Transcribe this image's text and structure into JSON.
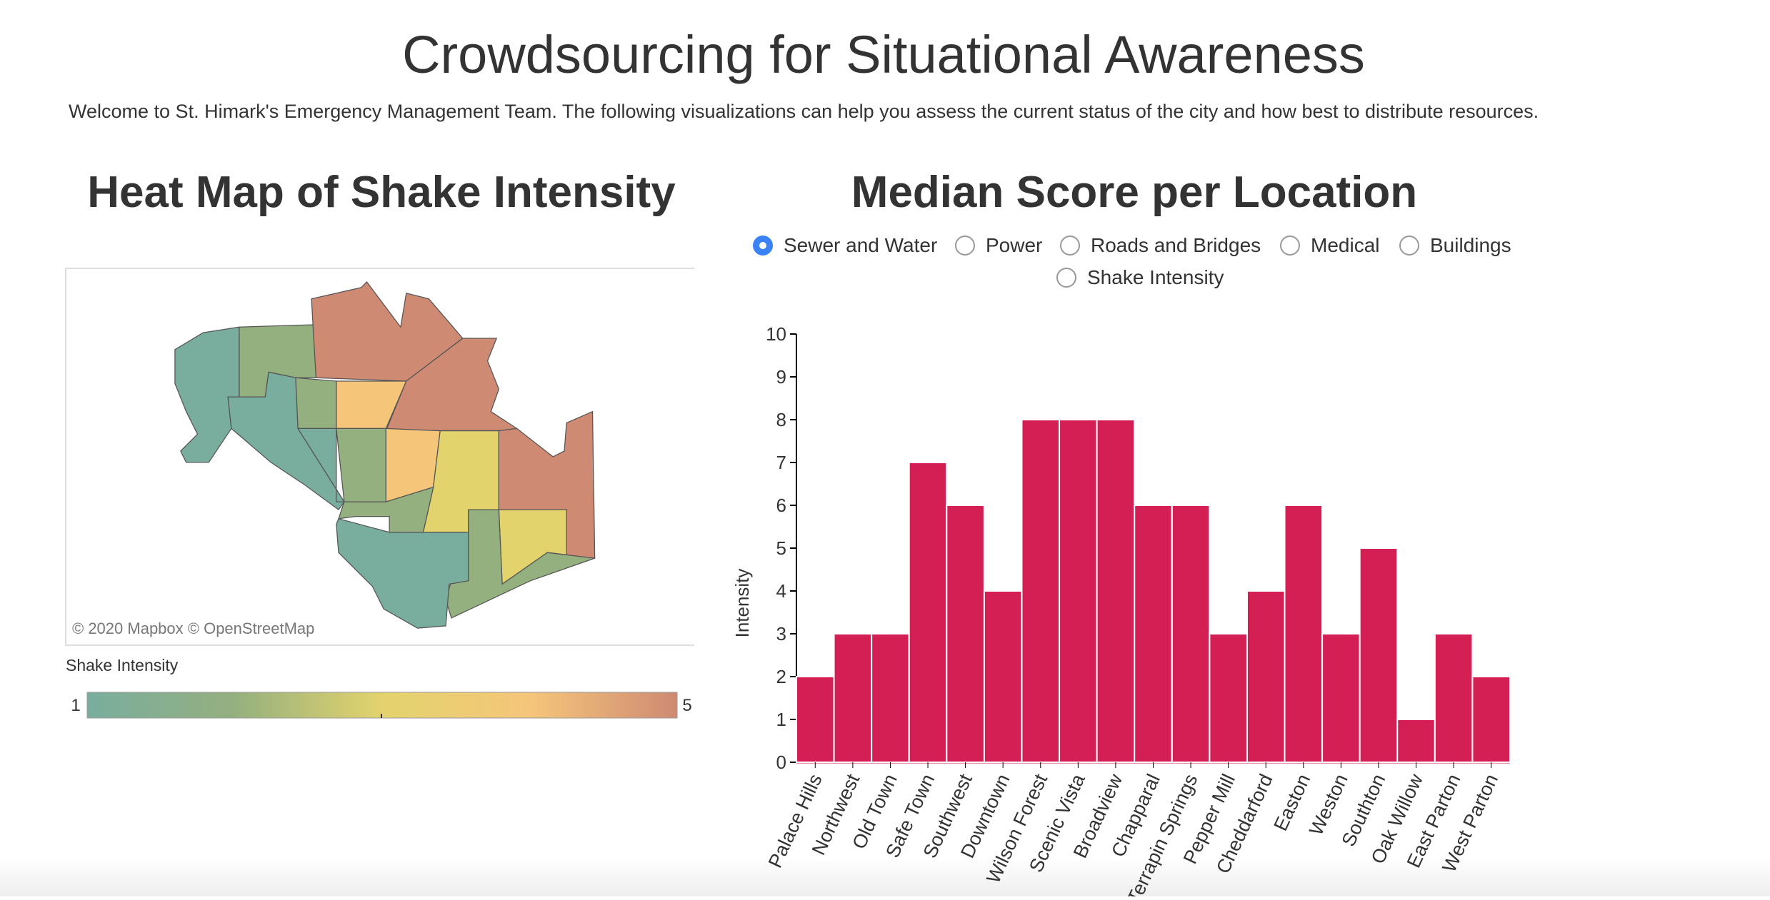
{
  "header": {
    "title": "Crowdsourcing for Situational Awareness",
    "description": "Welcome to St. Himark's Emergency Management Team. The following visualizations can help you assess the current status of the city and how best to distribute resources."
  },
  "map": {
    "title": "Heat Map of Shake Intensity",
    "attribution": "© 2020 Mapbox  © OpenStreetMap",
    "legend_title": "Shake Intensity",
    "legend_min": 1,
    "legend_max": 5
  },
  "radio": {
    "options": [
      "Sewer and Water",
      "Power",
      "Roads and Bridges",
      "Medical",
      "Buildings",
      "Shake Intensity"
    ],
    "selected": 0
  },
  "chart_data": {
    "type": "bar",
    "title": "Median Score per Location",
    "ylabel": "Intensity",
    "categories": [
      "Palace Hills",
      "Northwest",
      "Old Town",
      "Safe Town",
      "Southwest",
      "Downtown",
      "Wilson Forest",
      "Scenic Vista",
      "Broadview",
      "Chapparal",
      "Terrapin Springs",
      "Pepper Mill",
      "Cheddarford",
      "Easton",
      "Weston",
      "Southton",
      "Oak Willow",
      "East Parton",
      "West Parton"
    ],
    "values": [
      2,
      3,
      3,
      7,
      6,
      4,
      8,
      8,
      8,
      6,
      6,
      3,
      4,
      6,
      3,
      5,
      1,
      3,
      2
    ],
    "color": "#d41f55",
    "ylim": [
      0,
      10
    ],
    "yticks": [
      0,
      1,
      2,
      3,
      4,
      5,
      6,
      7,
      8,
      9,
      10
    ]
  }
}
